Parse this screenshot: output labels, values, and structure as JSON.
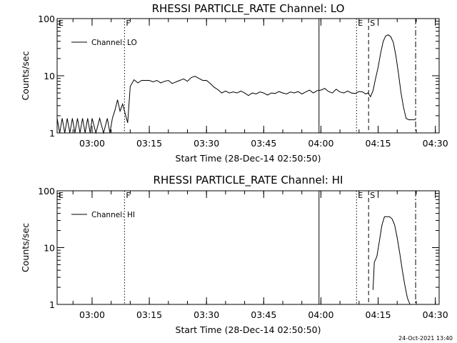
{
  "footer": "24-Oct-2021 13:40",
  "chart_data": [
    {
      "type": "line",
      "title": "RHESSI PARTICLE_RATE Channel: LO",
      "xlabel": "Start Time (28-Dec-14 02:50:50)",
      "ylabel": "Counts/sec",
      "yscale": "log",
      "ylim": [
        1,
        100
      ],
      "xlim": [
        "02:50:50",
        "04:31:00"
      ],
      "yticks": [
        "1",
        "10",
        "100"
      ],
      "xticks": [
        "03:00",
        "03:15",
        "03:30",
        "03:45",
        "04:00",
        "04:15",
        "04:30"
      ],
      "legend": "top-left",
      "markers": [
        {
          "label": "E",
          "time": "02:50:50",
          "style": "none"
        },
        {
          "label": "F",
          "time": "03:08:30",
          "style": "dotted"
        },
        {
          "label": "",
          "time": "03:59:30",
          "style": "solid"
        },
        {
          "label": "E",
          "time": "04:09:20",
          "style": "dotted"
        },
        {
          "label": "S",
          "time": "04:12:30",
          "style": "dashed"
        },
        {
          "label": "",
          "time": "04:24:50",
          "style": "dashdot"
        }
      ],
      "series": [
        {
          "name": "Channel: LO",
          "x": [
            "02:50:50",
            "02:51:30",
            "02:52:10",
            "02:52:50",
            "02:53:30",
            "02:54:10",
            "02:54:50",
            "02:55:30",
            "02:56:10",
            "02:56:50",
            "02:57:30",
            "02:58:10",
            "02:58:50",
            "02:59:30",
            "03:00:00",
            "03:01:00",
            "03:02:00",
            "03:03:00",
            "03:04:00",
            "03:04:40",
            "03:05:20",
            "03:06:00",
            "03:06:40",
            "03:07:20",
            "03:08:00",
            "03:08:40",
            "03:09:20",
            "03:10:00",
            "03:11:00",
            "03:12:00",
            "03:13:00",
            "03:14:00",
            "03:15:00",
            "03:16:00",
            "03:17:00",
            "03:18:00",
            "03:19:00",
            "03:20:00",
            "03:21:00",
            "03:22:00",
            "03:23:00",
            "03:24:00",
            "03:25:00",
            "03:26:00",
            "03:27:00",
            "03:28:00",
            "03:29:00",
            "03:30:00",
            "03:31:00",
            "03:32:00",
            "03:33:00",
            "03:34:00",
            "03:35:00",
            "03:36:00",
            "03:37:00",
            "03:38:00",
            "03:39:00",
            "03:40:00",
            "03:41:00",
            "03:42:00",
            "03:43:00",
            "03:44:00",
            "03:45:00",
            "03:46:00",
            "03:47:00",
            "03:48:00",
            "03:49:00",
            "03:50:00",
            "03:51:00",
            "03:52:00",
            "03:53:00",
            "03:54:00",
            "03:55:00",
            "03:56:00",
            "03:57:00",
            "03:58:00",
            "03:59:00",
            "04:00:00",
            "04:01:00",
            "04:02:00",
            "04:03:00",
            "04:04:00",
            "04:05:00",
            "04:06:00",
            "04:07:00",
            "04:08:00",
            "04:09:00",
            "04:10:00",
            "04:11:00",
            "04:11:40",
            "04:12:20",
            "04:13:00",
            "04:13:40",
            "04:14:20",
            "04:15:00",
            "04:15:40",
            "04:16:20",
            "04:17:00",
            "04:17:40",
            "04:18:20",
            "04:19:00",
            "04:19:40",
            "04:20:20",
            "04:21:00",
            "04:21:40",
            "04:22:20",
            "04:23:00",
            "04:24:00",
            "04:24:50"
          ],
          "y": [
            1.8,
            1.0,
            1.8,
            1.0,
            1.8,
            1.0,
            1.8,
            1.0,
            1.8,
            1.0,
            1.8,
            1.0,
            1.8,
            1.0,
            1.8,
            1.0,
            1.8,
            1.0,
            1.8,
            1.0,
            1.8,
            2.5,
            3.8,
            2.4,
            3.2,
            2.2,
            1.5,
            6.5,
            8.5,
            7.5,
            8.3,
            8.3,
            8.3,
            7.8,
            8.3,
            7.5,
            8.0,
            8.3,
            7.3,
            7.8,
            8.3,
            8.8,
            8.0,
            9.3,
            9.8,
            9.0,
            8.3,
            8.3,
            7.3,
            6.3,
            5.7,
            5.0,
            5.4,
            5.0,
            5.2,
            5.0,
            5.4,
            5.0,
            4.5,
            5.0,
            4.8,
            5.2,
            5.0,
            4.6,
            5.0,
            4.9,
            5.3,
            5.0,
            4.8,
            5.2,
            5.0,
            5.3,
            4.8,
            5.2,
            5.6,
            5.0,
            5.5,
            5.6,
            6.0,
            5.3,
            5.0,
            5.8,
            5.2,
            5.0,
            5.4,
            5.0,
            4.9,
            5.3,
            5.2,
            4.8,
            5.0,
            4.3,
            5.5,
            9.0,
            14.0,
            25.0,
            40.0,
            50.0,
            52.0,
            48.0,
            38.0,
            22.0,
            11.0,
            5.0,
            2.8,
            1.8,
            1.7,
            1.7,
            1.7
          ]
        }
      ]
    },
    {
      "type": "line",
      "title": "RHESSI PARTICLE_RATE Channel: HI",
      "xlabel": "Start Time (28-Dec-14 02:50:50)",
      "ylabel": "Counts/sec",
      "yscale": "log",
      "ylim": [
        1,
        100
      ],
      "xlim": [
        "02:50:50",
        "04:31:00"
      ],
      "yticks": [
        "1",
        "10",
        "100"
      ],
      "xticks": [
        "03:00",
        "03:15",
        "03:30",
        "03:45",
        "04:00",
        "04:15",
        "04:30"
      ],
      "legend": "top-left",
      "markers": [
        {
          "label": "E",
          "time": "02:50:50",
          "style": "none"
        },
        {
          "label": "F",
          "time": "03:08:30",
          "style": "dotted"
        },
        {
          "label": "",
          "time": "03:59:30",
          "style": "solid"
        },
        {
          "label": "E",
          "time": "04:09:20",
          "style": "dotted"
        },
        {
          "label": "S",
          "time": "04:12:30",
          "style": "dashed"
        },
        {
          "label": "",
          "time": "04:24:50",
          "style": "dashdot"
        }
      ],
      "series": [
        {
          "name": "Channel: HI",
          "x": [
            "04:13:40",
            "04:14:00",
            "04:14:40",
            "04:15:20",
            "04:16:00",
            "04:16:40",
            "04:17:20",
            "04:18:00",
            "04:18:40",
            "04:19:20",
            "04:20:00",
            "04:20:40",
            "04:21:20",
            "04:22:00",
            "04:22:40",
            "04:23:20"
          ],
          "y": [
            1.8,
            5.5,
            7.0,
            13.0,
            25.0,
            35.0,
            35.0,
            35.0,
            32.0,
            25.0,
            15.0,
            8.0,
            4.0,
            2.2,
            1.3,
            1.0
          ]
        }
      ]
    }
  ]
}
